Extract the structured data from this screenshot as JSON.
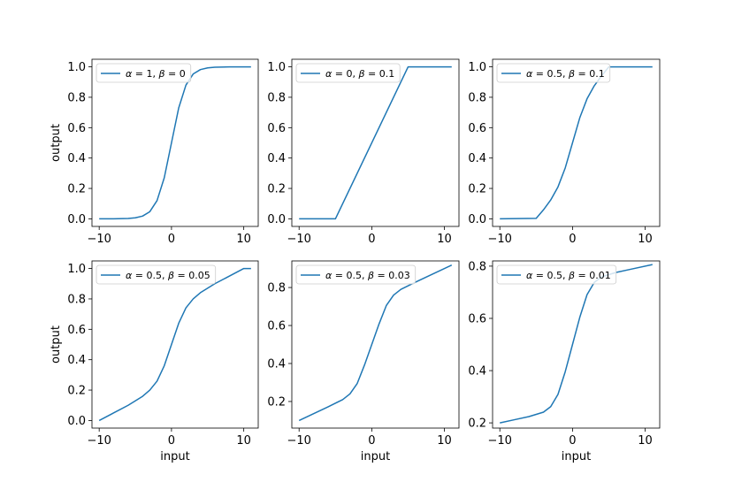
{
  "colors": {
    "line": "#1f77b4",
    "axes": "#000000",
    "legend_border": "#cccccc"
  },
  "chart_data": [
    {
      "type": "line",
      "legend": {
        "alpha": "1",
        "beta": "0",
        "placement": "upper-left"
      },
      "xlabel": "",
      "ylabel": "output",
      "xlim": [
        -11,
        12
      ],
      "ylim": [
        -0.05,
        1.05
      ],
      "xticks": [
        -10,
        0,
        10
      ],
      "yticks": [
        0.0,
        0.2,
        0.4,
        0.6,
        0.8,
        1.0
      ],
      "x": [
        -10,
        -8,
        -6,
        -5,
        -4,
        -3,
        -2,
        -1,
        0,
        1,
        2,
        3,
        4,
        5,
        6,
        8,
        11
      ],
      "y": [
        0.0,
        0.0003,
        0.0025,
        0.0067,
        0.018,
        0.047,
        0.12,
        0.27,
        0.5,
        0.73,
        0.88,
        0.953,
        0.982,
        0.993,
        0.9975,
        0.9997,
        1.0
      ]
    },
    {
      "type": "line",
      "legend": {
        "alpha": "0",
        "beta": "0.1",
        "placement": "upper-left"
      },
      "xlabel": "",
      "ylabel": "",
      "xlim": [
        -11,
        12
      ],
      "ylim": [
        -0.05,
        1.05
      ],
      "xticks": [
        -10,
        0,
        10
      ],
      "yticks": [
        0.0,
        0.2,
        0.4,
        0.6,
        0.8,
        1.0
      ],
      "x": [
        -10,
        -5,
        5,
        11
      ],
      "y": [
        0.0,
        0.0,
        1.0,
        1.0
      ]
    },
    {
      "type": "line",
      "legend": {
        "alpha": "0.5",
        "beta": "0.1",
        "placement": "upper-left"
      },
      "xlabel": "",
      "ylabel": "",
      "xlim": [
        -11,
        12
      ],
      "ylim": [
        -0.05,
        1.05
      ],
      "xticks": [
        -10,
        0,
        10
      ],
      "yticks": [
        0.0,
        0.2,
        0.4,
        0.6,
        0.8,
        1.0
      ],
      "x": [
        -10,
        -5,
        -4,
        -3,
        -2,
        -1,
        0,
        1,
        2,
        3,
        4,
        5,
        11
      ],
      "y": [
        0.0,
        0.003,
        0.059,
        0.124,
        0.21,
        0.335,
        0.5,
        0.665,
        0.79,
        0.876,
        0.941,
        1.0,
        1.0
      ]
    },
    {
      "type": "line",
      "legend": {
        "alpha": "0.5",
        "beta": "0.05",
        "placement": "upper-left"
      },
      "xlabel": "input",
      "ylabel": "output",
      "xlim": [
        -11,
        12
      ],
      "ylim": [
        -0.05,
        1.05
      ],
      "xticks": [
        -10,
        0,
        10
      ],
      "yticks": [
        0.0,
        0.2,
        0.4,
        0.6,
        0.8,
        1.0
      ],
      "x": [
        -10,
        -8,
        -6,
        -4,
        -3,
        -2,
        -1,
        0,
        1,
        2,
        3,
        4,
        6,
        8,
        10,
        11
      ],
      "y": [
        0.0,
        0.05,
        0.1,
        0.159,
        0.2,
        0.259,
        0.36,
        0.5,
        0.64,
        0.741,
        0.8,
        0.841,
        0.9,
        0.95,
        1.0,
        1.0
      ]
    },
    {
      "type": "line",
      "legend": {
        "alpha": "0.5",
        "beta": "0.03",
        "placement": "upper-left"
      },
      "xlabel": "input",
      "ylabel": "",
      "xlim": [
        -11,
        12
      ],
      "ylim": [
        0.06,
        0.94
      ],
      "xticks": [
        -10,
        0,
        10
      ],
      "yticks": [
        0.2,
        0.4,
        0.6,
        0.8
      ],
      "x": [
        -10,
        -8,
        -6,
        -4,
        -3,
        -2,
        -1,
        0,
        1,
        2,
        3,
        4,
        6,
        8,
        11
      ],
      "y": [
        0.1,
        0.136,
        0.172,
        0.21,
        0.24,
        0.295,
        0.392,
        0.5,
        0.608,
        0.705,
        0.76,
        0.79,
        0.828,
        0.864,
        0.918
      ]
    },
    {
      "type": "line",
      "legend": {
        "alpha": "0.5",
        "beta": "0.01",
        "placement": "upper-left"
      },
      "xlabel": "input",
      "ylabel": "",
      "xlim": [
        -11,
        12
      ],
      "ylim": [
        0.18,
        0.82
      ],
      "xticks": [
        -10,
        0,
        10
      ],
      "yticks": [
        0.2,
        0.4,
        0.6,
        0.8
      ],
      "x": [
        -10,
        -8,
        -6,
        -4,
        -3,
        -2,
        -1,
        0,
        1,
        2,
        3,
        4,
        6,
        8,
        11
      ],
      "y": [
        0.2,
        0.212,
        0.224,
        0.241,
        0.262,
        0.309,
        0.396,
        0.5,
        0.604,
        0.691,
        0.738,
        0.759,
        0.776,
        0.788,
        0.806
      ]
    }
  ]
}
